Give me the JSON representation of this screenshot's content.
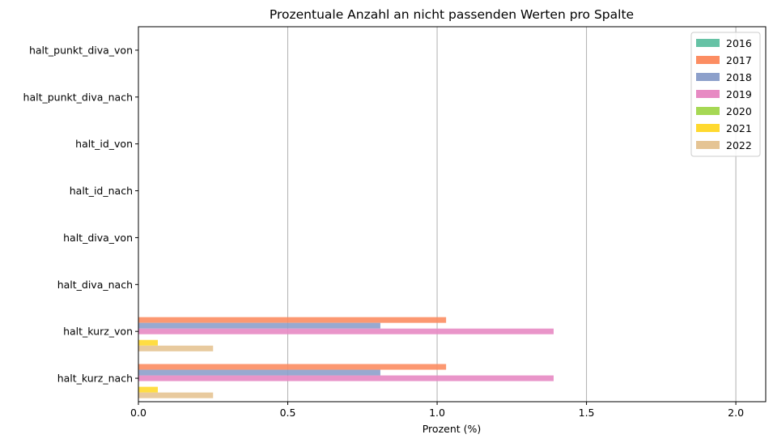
{
  "chart_data": {
    "type": "bar",
    "orientation": "horizontal",
    "title": "Prozentuale Anzahl an nicht passenden Werten pro Spalte",
    "xlabel": "Prozent (%)",
    "ylabel": "",
    "xlim": [
      0,
      2.1
    ],
    "xticks": [
      "0.0",
      "0.5",
      "1.0",
      "1.5",
      "2.0"
    ],
    "xtick_values": [
      0,
      0.5,
      1.0,
      1.5,
      2.0
    ],
    "grid": "x",
    "legend_position": "top-right",
    "categories": [
      "halt_punkt_diva_von",
      "halt_punkt_diva_nach",
      "halt_id_von",
      "halt_id_nach",
      "halt_diva_von",
      "halt_diva_nach",
      "halt_kurz_von",
      "halt_kurz_nach"
    ],
    "series": [
      {
        "name": "2016",
        "color": "#66c2a5",
        "values": [
          0,
          0,
          0,
          0,
          0,
          0,
          0,
          0
        ]
      },
      {
        "name": "2017",
        "color": "#fc8d62",
        "values": [
          0,
          0,
          0,
          0,
          0,
          0,
          1.03,
          1.03
        ]
      },
      {
        "name": "2018",
        "color": "#8da0cb",
        "values": [
          0,
          0,
          0,
          0,
          0,
          0,
          0.81,
          0.81
        ]
      },
      {
        "name": "2019",
        "color": "#e78ac3",
        "values": [
          0,
          0,
          0,
          0,
          0,
          0,
          1.39,
          1.39
        ]
      },
      {
        "name": "2020",
        "color": "#a6d854",
        "values": [
          0,
          0,
          0,
          0,
          0,
          0,
          0,
          0
        ]
      },
      {
        "name": "2021",
        "color": "#ffd92f",
        "values": [
          0,
          0,
          0,
          0,
          0,
          0,
          0.065,
          0.065
        ]
      },
      {
        "name": "2022",
        "color": "#e5c494",
        "values": [
          0,
          0,
          0,
          0,
          0,
          0,
          0.25,
          0.25
        ]
      }
    ]
  }
}
